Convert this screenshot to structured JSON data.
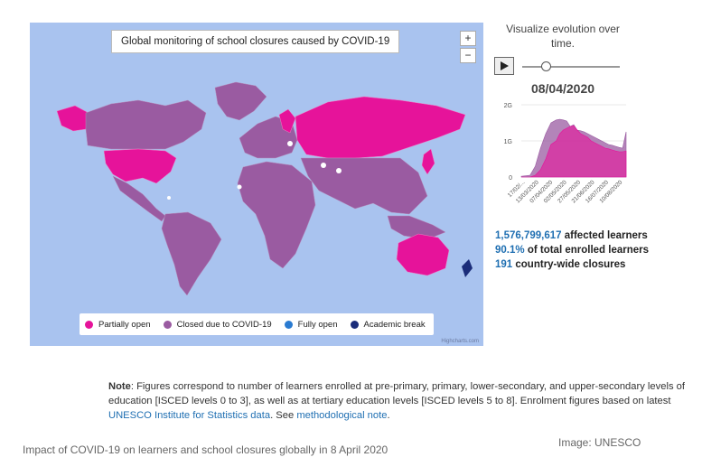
{
  "map": {
    "title": "Global monitoring of school closures caused by COVID-19",
    "zoom_in": "+",
    "zoom_out": "−",
    "credits": "Highcharts.com",
    "legend": [
      {
        "label": "Partially open",
        "color": "#e6139a"
      },
      {
        "label": "Closed due to COVID-19",
        "color": "#9a5ba1"
      },
      {
        "label": "Fully open",
        "color": "#2a7bd1"
      },
      {
        "label": "Academic break",
        "color": "#1b2d7a"
      }
    ],
    "colors": {
      "ocean": "#a9c3ef",
      "closed": "#9a5ba1",
      "partial": "#e6139a",
      "open": "#ffffff",
      "break": "#1b2d7a"
    }
  },
  "sidebar": {
    "viz_title": "Visualize evolution over time.",
    "play_icon": "play-icon",
    "date": "08/04/2020",
    "stats": {
      "affected_value": "1,576,799,617",
      "affected_label": "affected learners",
      "percent_value": "90.1%",
      "percent_label": "of total enrolled learners",
      "closures_value": "191",
      "closures_label": "country-wide closures"
    }
  },
  "chart_data": {
    "type": "area",
    "title": "",
    "xlabel": "",
    "ylabel": "",
    "y_ticks": [
      "0",
      "1G",
      "2G"
    ],
    "ylim": [
      0,
      2
    ],
    "x_tick_labels": [
      "17/02/...",
      "13/03/2020",
      "07/04/2020",
      "02/05/2020",
      "27/05/2020",
      "21/06/2020",
      "16/07/2020",
      "10/08/2020"
    ],
    "x": [
      0,
      5,
      8,
      11,
      14,
      17,
      20,
      22,
      24,
      26,
      28,
      30,
      32,
      34,
      36,
      38,
      40,
      42,
      44,
      46,
      48,
      50,
      52,
      54,
      56,
      58,
      60
    ],
    "series": [
      {
        "values": [
          0.02,
          0.05,
          0.3,
          0.8,
          1.2,
          1.5,
          1.58,
          1.6,
          1.58,
          1.55,
          1.4,
          1.45,
          1.3,
          1.28,
          1.25,
          1.2,
          1.15,
          1.1,
          1.05,
          1.0,
          0.95,
          0.9,
          0.88,
          0.85,
          0.82,
          0.8,
          1.25
        ],
        "color": "#9a5ba1"
      },
      {
        "values": [
          0.0,
          0.0,
          0.05,
          0.2,
          0.5,
          0.9,
          1.0,
          1.2,
          1.3,
          1.35,
          1.4,
          1.42,
          1.3,
          1.2,
          1.15,
          1.1,
          1.0,
          0.95,
          0.9,
          0.85,
          0.8,
          0.78,
          0.75,
          0.72,
          0.7,
          0.7,
          0.72
        ],
        "color": "#e6139a"
      }
    ]
  },
  "note": {
    "label": "Note",
    "text_1": ": Figures correspond to number of learners enrolled at pre-primary, primary, lower-secondary, and upper-secondary levels of education [ISCED levels 0 to 3], as well as at tertiary education levels [ISCED levels 5 to 8]. Enrolment figures based on latest ",
    "link_1": "UNESCO Institute for Statistics data",
    "text_2": ". See ",
    "link_2": "methodological note",
    "text_3": "."
  },
  "caption": "Impact of COVID-19 on learners and school closures globally in 8 April 2020",
  "image_credit": "Image: UNESCO"
}
